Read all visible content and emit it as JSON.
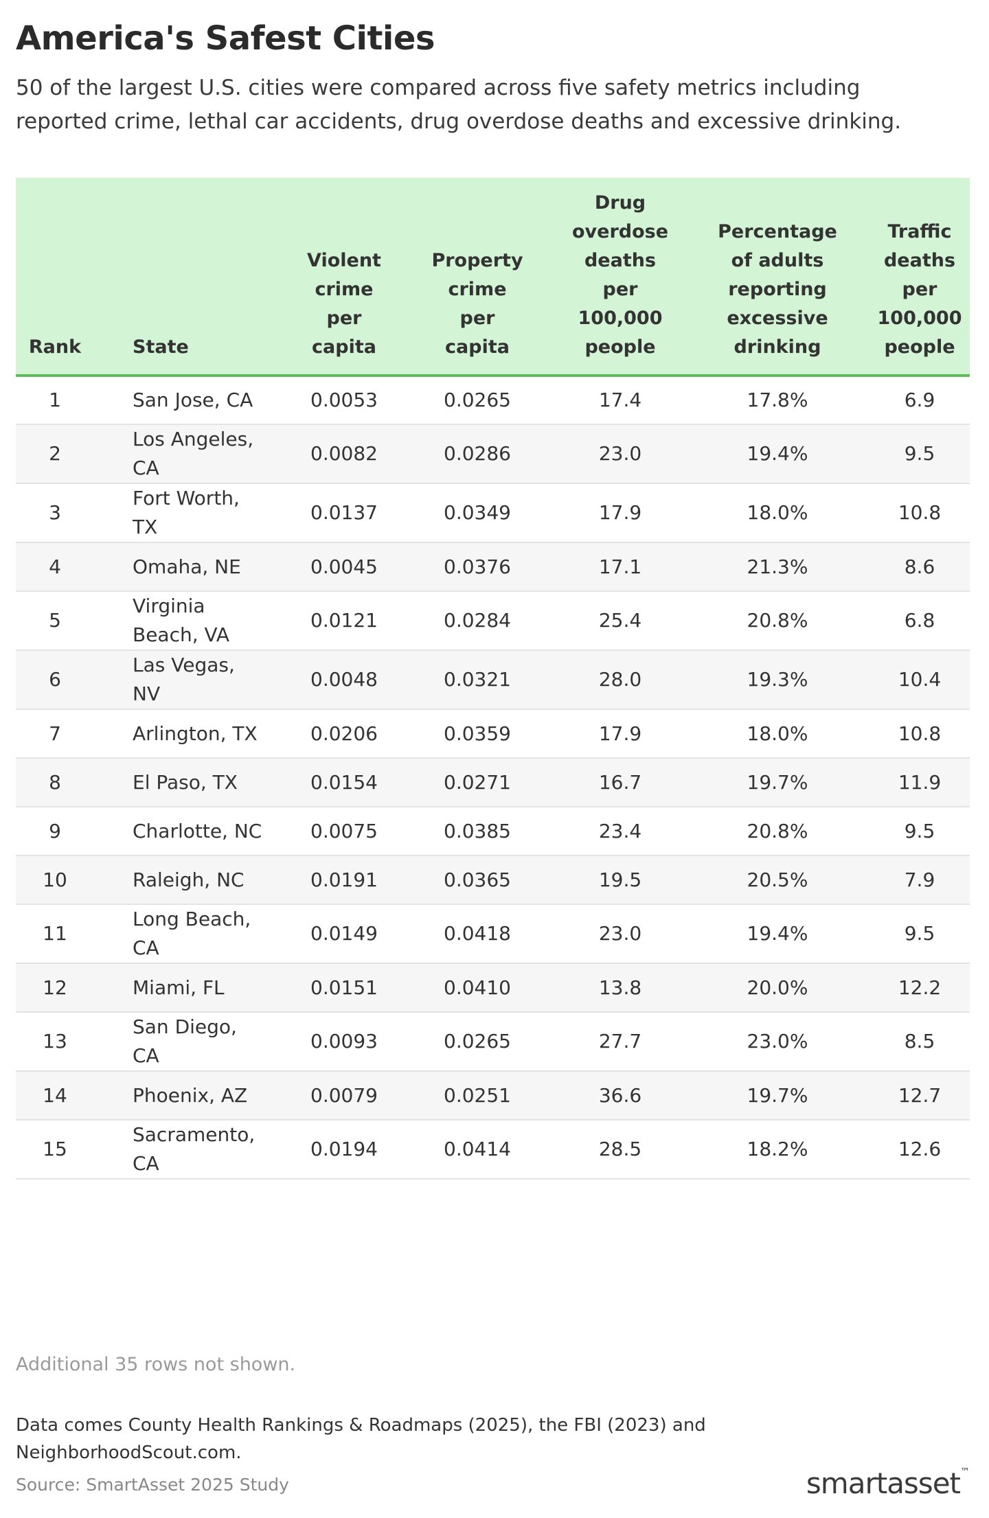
{
  "header": {
    "title": "America's Safest Cities",
    "subtitle": "50 of the largest U.S. cities were compared across five safety metrics including reported crime, lethal car accidents, drug overdose deaths and excessive drinking."
  },
  "table": {
    "columns": [
      "Rank",
      "State",
      "Violent crime per capita",
      "Property crime per capita",
      "Drug overdose deaths per 100,000 people",
      "Percentage of adults reporting excessive drinking",
      "Traffic deaths per 100,000 people"
    ],
    "rows": [
      [
        "1",
        "San Jose, CA",
        "0.0053",
        "0.0265",
        "17.4",
        "17.8%",
        "6.9"
      ],
      [
        "2",
        "Los Angeles, CA",
        "0.0082",
        "0.0286",
        "23.0",
        "19.4%",
        "9.5"
      ],
      [
        "3",
        "Fort Worth, TX",
        "0.0137",
        "0.0349",
        "17.9",
        "18.0%",
        "10.8"
      ],
      [
        "4",
        "Omaha, NE",
        "0.0045",
        "0.0376",
        "17.1",
        "21.3%",
        "8.6"
      ],
      [
        "5",
        "Virginia Beach, VA",
        "0.0121",
        "0.0284",
        "25.4",
        "20.8%",
        "6.8"
      ],
      [
        "6",
        "Las Vegas, NV",
        "0.0048",
        "0.0321",
        "28.0",
        "19.3%",
        "10.4"
      ],
      [
        "7",
        "Arlington, TX",
        "0.0206",
        "0.0359",
        "17.9",
        "18.0%",
        "10.8"
      ],
      [
        "8",
        "El Paso, TX",
        "0.0154",
        "0.0271",
        "16.7",
        "19.7%",
        "11.9"
      ],
      [
        "9",
        "Charlotte, NC",
        "0.0075",
        "0.0385",
        "23.4",
        "20.8%",
        "9.5"
      ],
      [
        "10",
        "Raleigh, NC",
        "0.0191",
        "0.0365",
        "19.5",
        "20.5%",
        "7.9"
      ],
      [
        "11",
        "Long Beach, CA",
        "0.0149",
        "0.0418",
        "23.0",
        "19.4%",
        "9.5"
      ],
      [
        "12",
        "Miami, FL",
        "0.0151",
        "0.0410",
        "13.8",
        "20.0%",
        "12.2"
      ],
      [
        "13",
        "San Diego, CA",
        "0.0093",
        "0.0265",
        "27.7",
        "23.0%",
        "8.5"
      ],
      [
        "14",
        "Phoenix, AZ",
        "0.0079",
        "0.0251",
        "36.6",
        "19.7%",
        "12.7"
      ],
      [
        "15",
        "Sacramento, CA",
        "0.0194",
        "0.0414",
        "28.5",
        "18.2%",
        "12.6"
      ]
    ]
  },
  "footer": {
    "note": "Additional 35 rows not shown.",
    "data_note": "Data comes County Health Rankings & Roadmaps (2025), the FBI (2023) and NeighborhoodScout.com.",
    "source": "Source: SmartAsset 2025 Study",
    "logo": "smartasset",
    "logo_mark": "™"
  }
}
